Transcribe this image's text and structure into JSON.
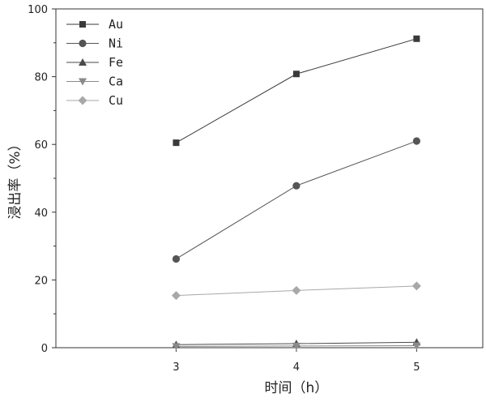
{
  "chart_data": {
    "type": "line",
    "title": "",
    "xlabel": "时间（h）",
    "ylabel": "浸出率（%）",
    "x": [
      3,
      4,
      5
    ],
    "xticks": [
      "3",
      "4",
      "5"
    ],
    "yticks": [
      "0",
      "20",
      "40",
      "60",
      "80",
      "100"
    ],
    "xlim": [
      2.0,
      5.55
    ],
    "ylim": [
      0,
      100
    ],
    "grid": false,
    "legend_position": "top-left",
    "series": [
      {
        "name": "Au",
        "values": [
          60.5,
          80.8,
          91.2
        ],
        "marker": "square",
        "color": "#3a3a3a"
      },
      {
        "name": "Ni",
        "values": [
          26.2,
          47.8,
          61.0
        ],
        "marker": "circle",
        "color": "#555555"
      },
      {
        "name": "Fe",
        "values": [
          0.9,
          1.2,
          1.6
        ],
        "marker": "triangle-up",
        "color": "#4a4a4a"
      },
      {
        "name": "Ca",
        "values": [
          0.4,
          0.5,
          0.6
        ],
        "marker": "triangle-down",
        "color": "#8a8a8a"
      },
      {
        "name": "Cu",
        "values": [
          15.4,
          16.9,
          18.2
        ],
        "marker": "diamond",
        "color": "#a8a8a8"
      }
    ]
  }
}
